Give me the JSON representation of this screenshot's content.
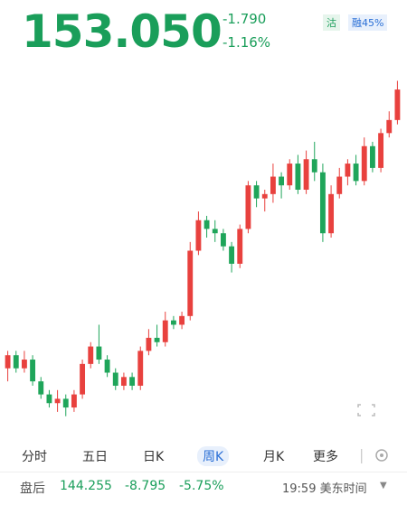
{
  "header": {
    "price": "153.050",
    "change": "-1.790",
    "change_pct": "-1.16%",
    "tag1": "沽",
    "tag2": "融45%"
  },
  "chart_data": {
    "type": "candlestick",
    "up_color": "#e8413e",
    "down_color": "#1fa55a",
    "ylim": [
      74,
      158
    ],
    "open": [
      89,
      92,
      89,
      91,
      86,
      83,
      81,
      82,
      80,
      83,
      90,
      94,
      91,
      88,
      85,
      87,
      85,
      93,
      96,
      95,
      100,
      99,
      101,
      116,
      123,
      121,
      120,
      117,
      113,
      121,
      131,
      128,
      129,
      133,
      131,
      136,
      130,
      137,
      134,
      120,
      129,
      133,
      136,
      132,
      140,
      135,
      143,
      146
    ],
    "close": [
      92,
      89,
      91,
      86,
      83,
      81,
      82,
      80,
      83,
      90,
      94,
      91,
      88,
      85,
      87,
      85,
      93,
      96,
      95,
      100,
      99,
      101,
      116,
      123,
      121,
      120,
      117,
      113,
      121,
      131,
      128,
      129,
      133,
      131,
      136,
      130,
      137,
      134,
      120,
      129,
      133,
      136,
      132,
      140,
      135,
      143,
      146,
      153
    ],
    "high": [
      93,
      93,
      93,
      92,
      87,
      84,
      84,
      83,
      84,
      91,
      95,
      99,
      92,
      89,
      88,
      88,
      94,
      98,
      99,
      102,
      101,
      102,
      118,
      125,
      124,
      123,
      121,
      118,
      122,
      132,
      132,
      130,
      136,
      134,
      137,
      138,
      139,
      141,
      136,
      131,
      135,
      137,
      138,
      142,
      141,
      144,
      148,
      155
    ],
    "low": [
      86,
      88,
      88,
      85,
      82,
      80,
      79,
      78,
      79,
      82,
      89,
      90,
      87,
      84,
      84,
      84,
      84,
      92,
      94,
      94,
      98,
      98,
      100,
      115,
      119,
      118,
      116,
      111,
      112,
      120,
      126,
      125,
      127,
      128,
      130,
      129,
      129,
      132,
      118,
      119,
      128,
      131,
      131,
      131,
      134,
      134,
      142,
      145
    ]
  },
  "tabs": [
    "分时",
    "五日",
    "日K",
    "周K",
    "月K",
    "更多"
  ],
  "footer": {
    "label": "盘后",
    "price": "144.255",
    "change": "-8.795",
    "change_pct": "-5.75%",
    "time": "19:59 美东时间"
  }
}
